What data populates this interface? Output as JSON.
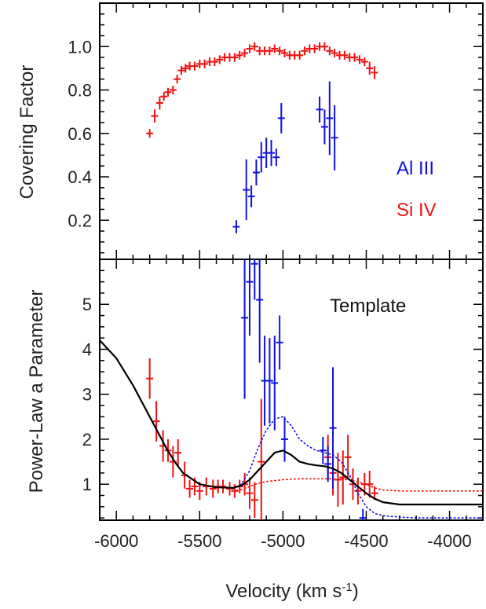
{
  "colors": {
    "al3": "#1010e0",
    "si4": "#ee1111",
    "template": "#000000",
    "axis": "#000000"
  },
  "chart_data": [
    {
      "type": "scatter",
      "panel": "top",
      "title": "",
      "xlabel": "",
      "ylabel": "Covering Factor",
      "xlim": [
        -6100,
        -3800
      ],
      "ylim": [
        0.02,
        1.2
      ],
      "yticks": [
        0.2,
        0.4,
        0.6,
        0.8,
        1.0
      ],
      "ytick_labels": [
        "0.2",
        "0.4",
        "0.6",
        "0.8",
        "1.0"
      ],
      "grid": false,
      "legend": [
        {
          "label": "Al III",
          "series": "al3"
        },
        {
          "label": "Si IV",
          "series": "si4"
        }
      ],
      "series": [
        {
          "id": "si4",
          "name": "Si IV",
          "x": [
            -5800,
            -5770,
            -5740,
            -5715,
            -5690,
            -5660,
            -5635,
            -5610,
            -5585,
            -5560,
            -5530,
            -5500,
            -5470,
            -5440,
            -5410,
            -5380,
            -5350,
            -5320,
            -5290,
            -5260,
            -5230,
            -5200,
            -5170,
            -5140,
            -5110,
            -5080,
            -5050,
            -5020,
            -4990,
            -4960,
            -4930,
            -4900,
            -4870,
            -4840,
            -4810,
            -4780,
            -4750,
            -4720,
            -4690,
            -4660,
            -4630,
            -4600,
            -4570,
            -4540,
            -4510,
            -4480,
            -4450
          ],
          "y": [
            0.6,
            0.68,
            0.74,
            0.77,
            0.79,
            0.8,
            0.85,
            0.89,
            0.9,
            0.91,
            0.91,
            0.92,
            0.92,
            0.93,
            0.93,
            0.94,
            0.95,
            0.95,
            0.95,
            0.96,
            0.97,
            0.99,
            1.0,
            0.98,
            0.98,
            0.98,
            0.99,
            0.98,
            0.97,
            0.96,
            0.96,
            0.96,
            0.98,
            0.99,
            0.99,
            1.0,
            1.0,
            0.98,
            0.97,
            0.96,
            0.96,
            0.95,
            0.95,
            0.94,
            0.93,
            0.9,
            0.88
          ],
          "yerr": [
            0.02,
            0.03,
            0.03,
            0.02,
            0.02,
            0.02,
            0.02,
            0.02,
            0.02,
            0.02,
            0.02,
            0.02,
            0.02,
            0.02,
            0.02,
            0.02,
            0.02,
            0.02,
            0.02,
            0.02,
            0.02,
            0.02,
            0.02,
            0.02,
            0.02,
            0.02,
            0.02,
            0.02,
            0.02,
            0.02,
            0.02,
            0.02,
            0.02,
            0.02,
            0.02,
            0.02,
            0.02,
            0.02,
            0.02,
            0.02,
            0.02,
            0.02,
            0.02,
            0.02,
            0.02,
            0.03,
            0.03
          ]
        },
        {
          "id": "al3",
          "name": "Al III",
          "x": [
            -5280,
            -5220,
            -5190,
            -5160,
            -5130,
            -5100,
            -5070,
            -5040,
            -5010,
            -4780,
            -4750,
            -4720,
            -4690
          ],
          "y": [
            0.17,
            0.34,
            0.31,
            0.42,
            0.49,
            0.51,
            0.51,
            0.49,
            0.67,
            0.71,
            0.63,
            0.67,
            0.58
          ],
          "yerr": [
            0.03,
            0.14,
            0.05,
            0.06,
            0.07,
            0.07,
            0.06,
            0.04,
            0.07,
            0.06,
            0.08,
            0.17,
            0.15
          ]
        }
      ]
    },
    {
      "type": "line",
      "panel": "bottom",
      "title": "",
      "xlabel": "Velocity (km s-1)",
      "xlabel_main": "Velocity (km s",
      "xlabel_sup": "-1",
      "xlabel_end": ")",
      "ylabel": "Power-Law a Parameter",
      "xlim": [
        -6100,
        -3800
      ],
      "ylim": [
        0.2,
        6.0
      ],
      "xticks": [
        -6000,
        -5500,
        -5000,
        -4500,
        -4000
      ],
      "xtick_labels": [
        "-6000",
        "-5500",
        "-5000",
        "-4500",
        "-4000"
      ],
      "yticks": [
        1,
        2,
        3,
        4,
        5
      ],
      "ytick_labels": [
        "1",
        "2",
        "3",
        "4",
        "5"
      ],
      "grid": false,
      "annotation": "Template",
      "series": [
        {
          "id": "template",
          "style": "solid",
          "x": [
            -6100,
            -6000,
            -5900,
            -5800,
            -5750,
            -5700,
            -5650,
            -5600,
            -5500,
            -5400,
            -5300,
            -5250,
            -5200,
            -5150,
            -5100,
            -5050,
            -5000,
            -4950,
            -4900,
            -4850,
            -4800,
            -4750,
            -4700,
            -4650,
            -4600,
            -4550,
            -4500,
            -4450,
            -4400,
            -4300,
            -4200,
            -4000,
            -3800
          ],
          "y": [
            4.2,
            3.8,
            3.2,
            2.5,
            2.15,
            1.8,
            1.5,
            1.25,
            1.0,
            0.93,
            0.92,
            0.97,
            1.1,
            1.3,
            1.5,
            1.7,
            1.75,
            1.65,
            1.5,
            1.45,
            1.42,
            1.4,
            1.35,
            1.25,
            1.1,
            0.95,
            0.8,
            0.68,
            0.6,
            0.55,
            0.55,
            0.55,
            0.55
          ]
        },
        {
          "id": "blue-dotted",
          "style": "dotted",
          "color": "al3",
          "x": [
            -5300,
            -5250,
            -5200,
            -5150,
            -5100,
            -5050,
            -5000,
            -4950,
            -4900,
            -4850,
            -4800,
            -4750,
            -4700,
            -4650,
            -4600,
            -4550,
            -4500,
            -4450,
            -4400,
            -4300,
            -4200,
            -4000,
            -3800
          ],
          "y": [
            0.9,
            1.0,
            1.3,
            1.8,
            2.2,
            2.45,
            2.5,
            2.3,
            2.0,
            1.85,
            1.75,
            1.7,
            1.65,
            1.5,
            1.2,
            0.8,
            0.5,
            0.35,
            0.3,
            0.27,
            0.25,
            0.25,
            0.25
          ]
        },
        {
          "id": "red-dotted",
          "style": "dotted",
          "color": "si4",
          "x": [
            -5300,
            -5250,
            -5200,
            -5150,
            -5100,
            -5050,
            -5000,
            -4900,
            -4800,
            -4700,
            -4600,
            -4500,
            -4450,
            -4400,
            -4300,
            -4200,
            -4000,
            -3800
          ],
          "y": [
            0.85,
            0.88,
            0.95,
            1.02,
            1.06,
            1.08,
            1.1,
            1.12,
            1.12,
            1.12,
            1.1,
            1.0,
            0.92,
            0.87,
            0.85,
            0.85,
            0.85,
            0.85
          ]
        },
        {
          "id": "si4-points",
          "style": "errorbar",
          "color": "si4",
          "x": [
            -5800,
            -5760,
            -5720,
            -5690,
            -5660,
            -5630,
            -5590,
            -5560,
            -5530,
            -5500,
            -5460,
            -5420,
            -5390,
            -5360,
            -5320,
            -5290,
            -5260,
            -5230,
            -5200,
            -5170,
            -5130,
            -4730,
            -4700,
            -4670,
            -4640,
            -4610,
            -4580,
            -4550,
            -4510,
            -4480,
            -4450
          ],
          "y": [
            3.35,
            2.4,
            1.85,
            1.75,
            1.5,
            1.7,
            1.2,
            0.9,
            0.95,
            0.85,
            0.95,
            0.9,
            0.95,
            0.95,
            0.9,
            0.85,
            0.95,
            1.0,
            0.8,
            0.65,
            1.5,
            1.6,
            1.25,
            1.1,
            1.15,
            1.6,
            1.0,
            0.85,
            1.0,
            1.0,
            0.8
          ],
          "yerr": [
            0.45,
            0.45,
            0.35,
            0.25,
            0.35,
            0.3,
            0.3,
            0.2,
            0.2,
            0.2,
            0.2,
            0.2,
            0.15,
            0.15,
            0.15,
            0.15,
            0.15,
            0.25,
            0.35,
            0.4,
            1.4,
            0.5,
            0.5,
            0.6,
            0.6,
            0.5,
            0.35,
            0.3,
            0.25,
            0.3,
            0.15
          ]
        },
        {
          "id": "al3-points",
          "style": "errorbar",
          "color": "al3",
          "x": [
            -5230,
            -5200,
            -5170,
            -5140,
            -5110,
            -5080,
            -5050,
            -5020,
            -4990,
            -4760,
            -4730,
            -4700,
            -4520
          ],
          "y": [
            4.7,
            5.5,
            5.9,
            5.1,
            3.3,
            3.3,
            3.25,
            4.15,
            2.0,
            1.75,
            1.45,
            2.25,
            0.25
          ],
          "yerr": [
            1.8,
            1.2,
            0.8,
            1.4,
            1.0,
            0.95,
            1.05,
            0.6,
            0.5,
            0.3,
            0.4,
            1.35,
            0.2
          ]
        }
      ]
    }
  ]
}
